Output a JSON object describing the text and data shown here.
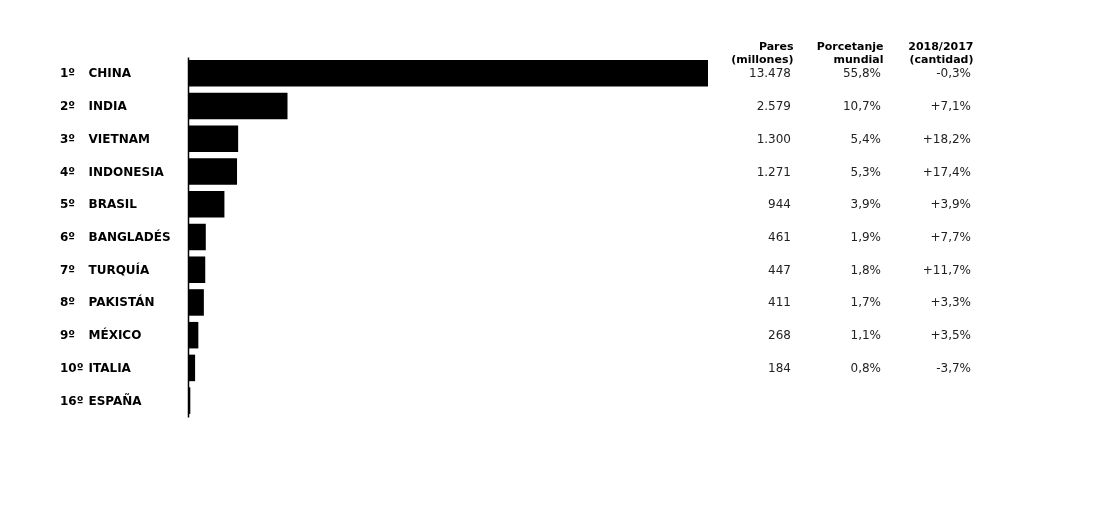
{
  "chart_data": {
    "type": "bar",
    "orientation": "horizontal",
    "color": "#000000",
    "categories": [
      "CHINA",
      "INDIA",
      "VIETNAM",
      "INDONESIA",
      "BRASIL",
      "BANGLADÉS",
      "TURQUÍA",
      "PAKISTÁN",
      "MÉXICO",
      "ITALIA",
      "ESPAÑA"
    ],
    "values": [
      13478,
      2579,
      1300,
      1271,
      944,
      461,
      447,
      411,
      268,
      184,
      60
    ],
    "value_labels": [
      "13.478",
      "2.579",
      "1.300",
      "1.271",
      "944",
      "461",
      "447",
      "411",
      "268",
      "184",
      null
    ],
    "annotations": [
      "Pares\n(millones)",
      "Porcetanje\nmundial",
      "2018/2017\n(cantidad)",
      "1º",
      "55,8%",
      "-0,3%",
      "2º",
      "10,7%",
      "+7,1%",
      "3º",
      "5,4%",
      "+18,2%",
      "4º",
      "5,3%",
      "+17,4%",
      "5º",
      "3,9%",
      "+3,9%",
      "6º",
      "1,9%",
      "+7,7%",
      "7º",
      "1,8%",
      "+11,7%",
      "8º",
      "1,7%",
      "+3,3%",
      "9º",
      "1,1%",
      "+3,5%",
      "10º",
      "0,8%",
      "-3,7%",
      "16º"
    ]
  }
}
